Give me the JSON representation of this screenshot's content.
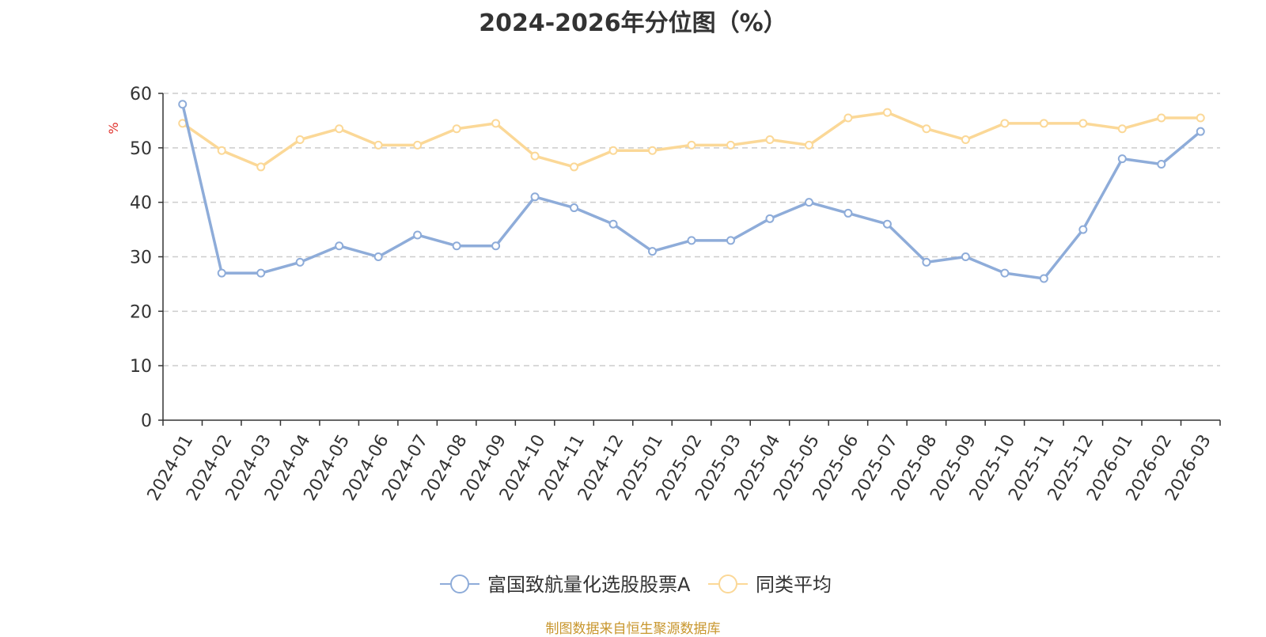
{
  "chart_data": {
    "type": "line",
    "title": "2024-2026年分位图（%）",
    "ylabel": "%",
    "ylim": [
      0,
      60
    ],
    "yticks": [
      0,
      10,
      20,
      30,
      40,
      50,
      60
    ],
    "grid": true,
    "legend_position": "bottom-center",
    "categories": [
      "2024-01",
      "2024-02",
      "2024-03",
      "2024-04",
      "2024-05",
      "2024-06",
      "2024-07",
      "2024-08",
      "2024-09",
      "2024-10",
      "2024-11",
      "2024-12",
      "2025-01",
      "2025-02",
      "2025-03",
      "2025-04",
      "2025-05",
      "2025-06",
      "2025-07",
      "2025-08",
      "2025-09",
      "2025-10",
      "2025-11",
      "2025-12",
      "2026-01",
      "2026-02",
      "2026-03"
    ],
    "series": [
      {
        "name": "富国致航量化选股股票A",
        "color": "#8eacd9",
        "values": [
          58,
          27,
          27,
          29,
          32,
          30,
          34,
          32,
          32,
          41,
          39,
          36,
          31,
          33,
          33,
          37,
          40,
          38,
          36,
          29,
          30,
          27,
          26,
          35,
          48,
          47,
          53
        ]
      },
      {
        "name": "同类平均",
        "color": "#fbd897",
        "values": [
          54.5,
          49.5,
          46.5,
          51.5,
          53.5,
          50.5,
          50.5,
          53.5,
          54.5,
          48.5,
          46.5,
          49.5,
          49.5,
          50.5,
          50.5,
          51.5,
          50.5,
          55.5,
          56.5,
          53.5,
          51.5,
          54.5,
          54.5,
          54.5,
          53.5,
          55.5,
          55.5
        ]
      }
    ]
  },
  "footer": "制图数据来自恒生聚源数据库"
}
